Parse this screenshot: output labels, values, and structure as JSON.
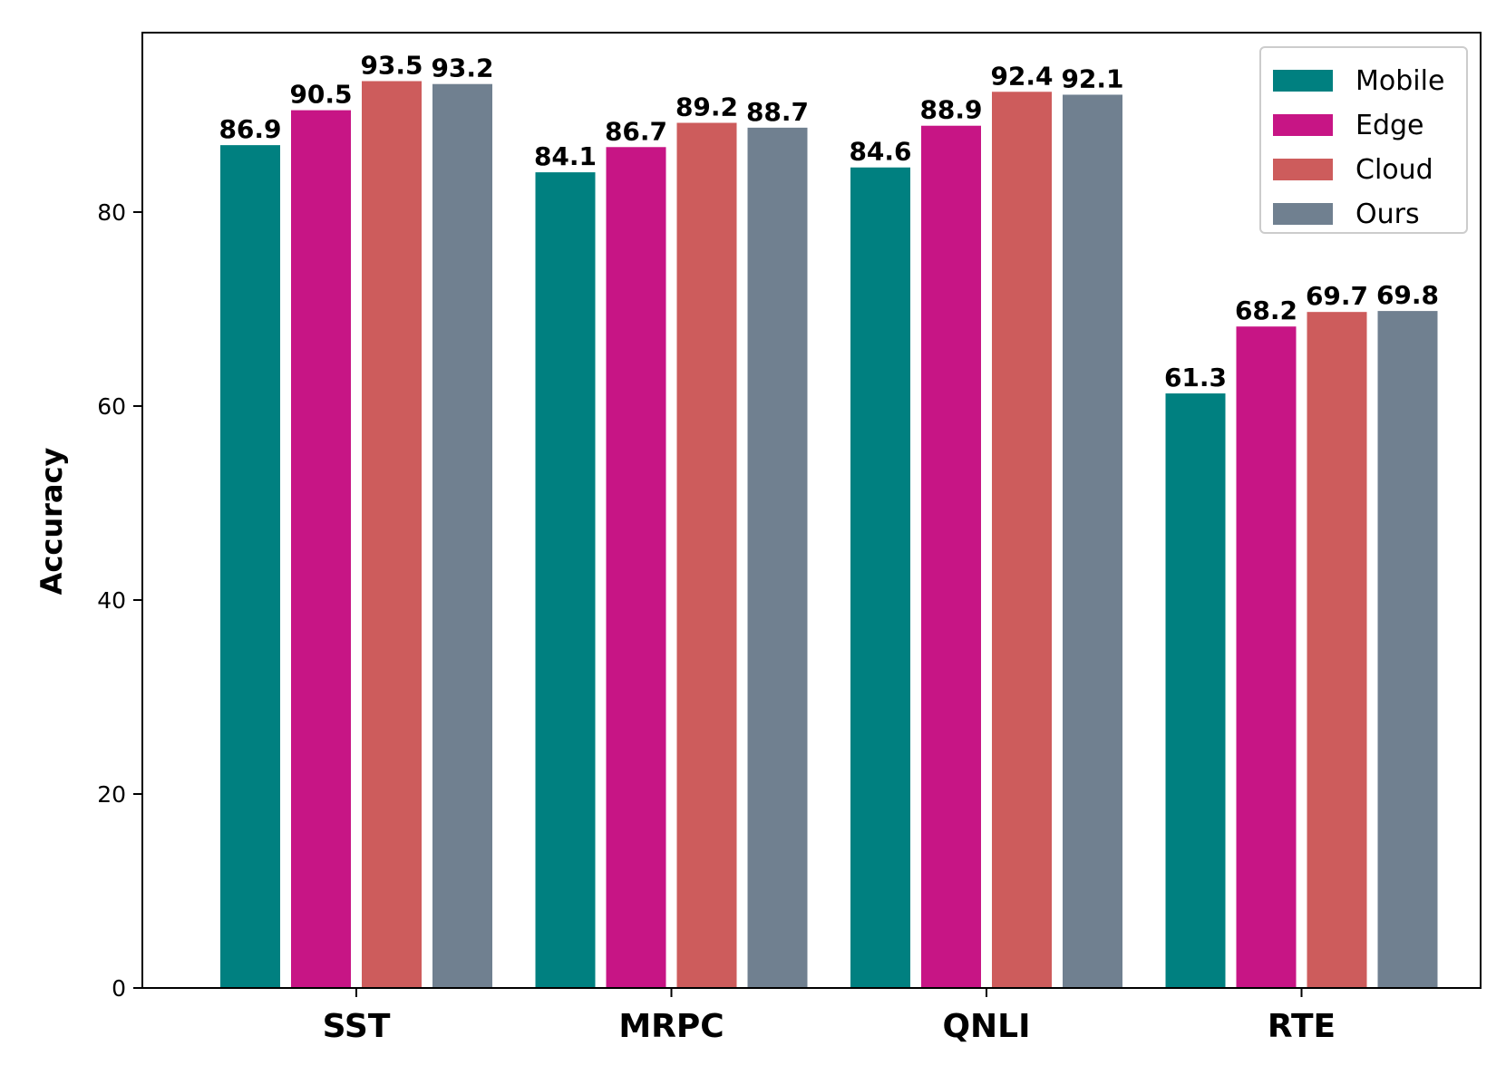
{
  "chart_data": {
    "type": "bar",
    "categories": [
      "SST",
      "MRPC",
      "QNLI",
      "RTE"
    ],
    "series": [
      {
        "name": "Mobile",
        "color": "#008080",
        "values": [
          86.9,
          84.1,
          84.6,
          61.3
        ]
      },
      {
        "name": "Edge",
        "color": "#C71585",
        "values": [
          90.5,
          86.7,
          88.9,
          68.2
        ]
      },
      {
        "name": "Cloud",
        "color": "#CD5C5C",
        "values": [
          93.5,
          89.2,
          92.4,
          69.7
        ]
      },
      {
        "name": "Ours",
        "color": "#708090",
        "values": [
          93.2,
          88.7,
          92.1,
          69.8
        ]
      }
    ],
    "data_labels": [
      [
        "86.9",
        "84.1",
        "84.6",
        "61.3"
      ],
      [
        "90.5",
        "86.7",
        "88.9",
        "68.2"
      ],
      [
        "93.5",
        "89.2",
        "92.4",
        "69.7"
      ],
      [
        "93.2",
        "88.7",
        "92.1",
        "69.8"
      ]
    ],
    "ylabel": "Accuracy",
    "xlabel": "",
    "ylim": [
      0,
      98.5
    ],
    "yticks": [
      0,
      20,
      40,
      60,
      80
    ],
    "ytick_labels": [
      "0",
      "20",
      "40",
      "60",
      "80"
    ],
    "legend_position": "top-right",
    "grid": false
  }
}
